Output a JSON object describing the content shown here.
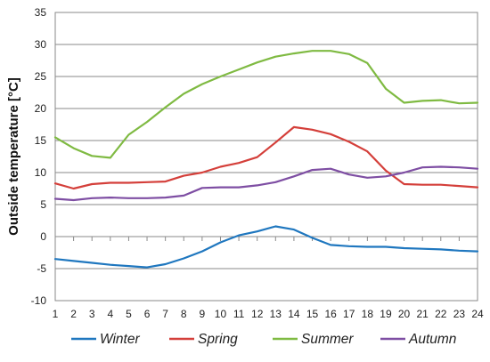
{
  "chart_data": {
    "type": "line",
    "title": "",
    "xlabel": "",
    "ylabel": "Outside temperature [°C]",
    "x": [
      1,
      2,
      3,
      4,
      5,
      6,
      7,
      8,
      9,
      10,
      11,
      12,
      13,
      14,
      15,
      16,
      17,
      18,
      19,
      20,
      21,
      22,
      23,
      24
    ],
    "xlim": [
      1,
      24
    ],
    "ylim": [
      -10,
      35
    ],
    "yticks": [
      -10,
      -5,
      0,
      5,
      10,
      15,
      20,
      25,
      30,
      35
    ],
    "grid": "horizontal",
    "legend_position": "bottom",
    "series": [
      {
        "name": "Winter",
        "color": "#1f77bf",
        "values": [
          -3.5,
          -3.8,
          -4.1,
          -4.4,
          -4.6,
          -4.8,
          -4.3,
          -3.4,
          -2.3,
          -0.9,
          0.2,
          0.8,
          1.6,
          1.1,
          -0.2,
          -1.3,
          -1.5,
          -1.6,
          -1.6,
          -1.8,
          -1.9,
          -2.0,
          -2.2,
          -2.3
        ]
      },
      {
        "name": "Spring",
        "color": "#d43f3a",
        "values": [
          8.3,
          7.5,
          8.2,
          8.4,
          8.4,
          8.5,
          8.6,
          9.5,
          10.0,
          10.9,
          11.5,
          12.4,
          14.7,
          17.1,
          16.7,
          16.0,
          14.8,
          13.3,
          10.3,
          8.2,
          8.1,
          8.1,
          7.9,
          7.7
        ]
      },
      {
        "name": "Summer",
        "color": "#7fba42",
        "values": [
          15.5,
          13.8,
          12.6,
          12.3,
          15.9,
          17.9,
          20.2,
          22.3,
          23.8,
          25.0,
          26.1,
          27.2,
          28.1,
          28.6,
          29.0,
          29.0,
          28.5,
          27.1,
          23.1,
          20.9,
          21.2,
          21.3,
          20.8,
          20.9
        ]
      },
      {
        "name": "Autumn",
        "color": "#7e4ea3",
        "values": [
          5.9,
          5.7,
          6.0,
          6.1,
          6.0,
          6.0,
          6.1,
          6.4,
          7.6,
          7.7,
          7.7,
          8.0,
          8.5,
          9.4,
          10.4,
          10.6,
          9.7,
          9.2,
          9.4,
          10.0,
          10.8,
          10.9,
          10.8,
          10.6
        ]
      }
    ]
  }
}
